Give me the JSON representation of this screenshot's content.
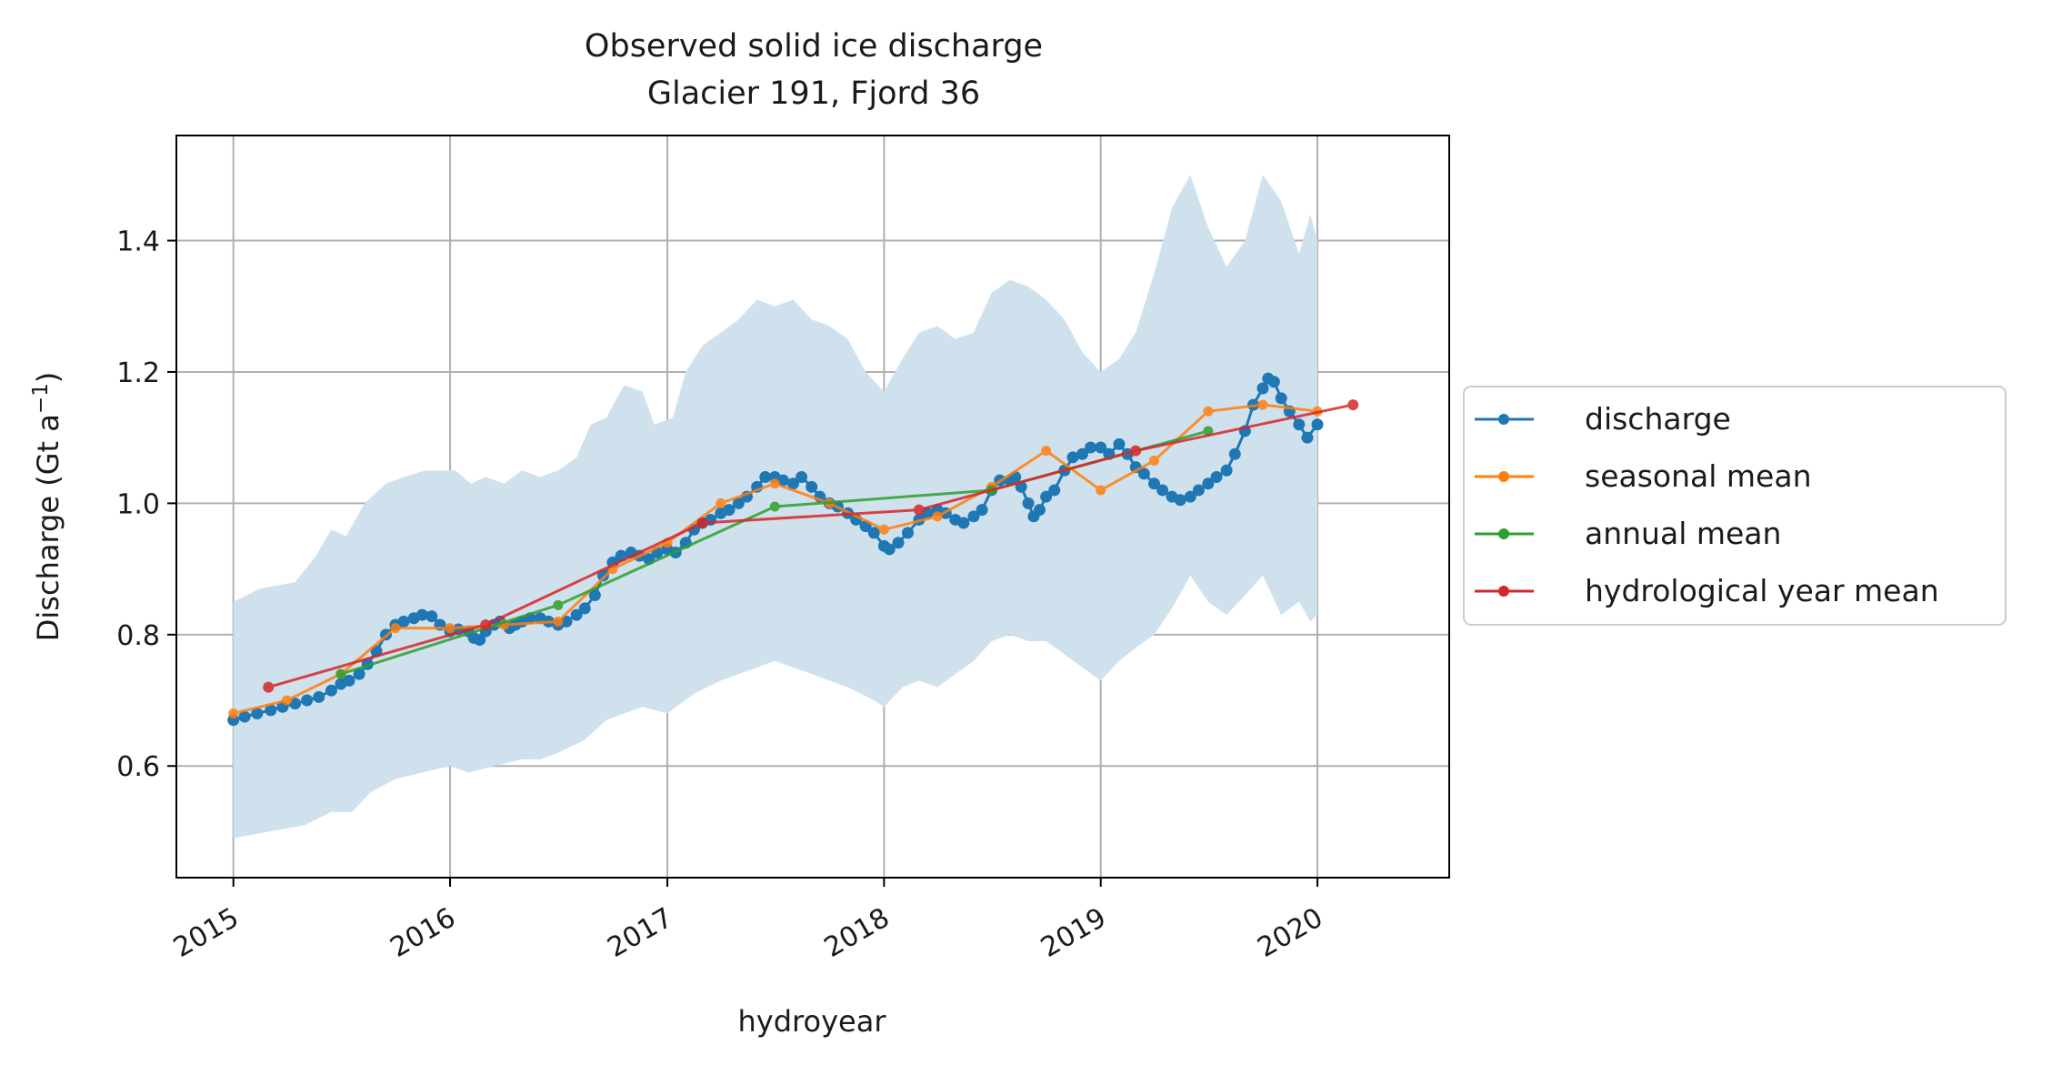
{
  "chart_data": {
    "type": "line",
    "title": "Observed solid ice discharge",
    "subtitle": "Glacier 191, Fjord 36",
    "xlabel": "hydroyear",
    "ylabel": "Discharge (Gt a",
    "ylabel_sup": "−1",
    "ylabel_close": ")",
    "xlim": [
      "2014-09-27",
      "2020-08-10"
    ],
    "ylim": [
      0.43,
      1.56
    ],
    "x_ticks": [
      {
        "date": "2015-01-01",
        "label": "2015"
      },
      {
        "date": "2016-01-01",
        "label": "2016"
      },
      {
        "date": "2017-01-01",
        "label": "2017"
      },
      {
        "date": "2018-01-01",
        "label": "2018"
      },
      {
        "date": "2019-01-01",
        "label": "2019"
      },
      {
        "date": "2020-01-01",
        "label": "2020"
      }
    ],
    "y_ticks": [
      {
        "value": 0.6,
        "label": "0.6"
      },
      {
        "value": 0.8,
        "label": "0.8"
      },
      {
        "value": 1.0,
        "label": "1.0"
      },
      {
        "value": 1.2,
        "label": "1.2"
      },
      {
        "value": 1.4,
        "label": "1.4"
      }
    ],
    "grid": true,
    "legend_position": "right, outside plot area",
    "uncertainty_band": {
      "color": "#d0e1ee",
      "upper": [
        [
          "2015-01-01",
          0.85
        ],
        [
          "2015-02-15",
          0.87
        ],
        [
          "2015-04-15",
          0.88
        ],
        [
          "2015-05-20",
          0.92
        ],
        [
          "2015-06-15",
          0.96
        ],
        [
          "2015-07-10",
          0.95
        ],
        [
          "2015-08-10",
          1.0
        ],
        [
          "2015-09-15",
          1.03
        ],
        [
          "2015-10-15",
          1.04
        ],
        [
          "2015-11-20",
          1.05
        ],
        [
          "2016-01-10",
          1.05
        ],
        [
          "2016-02-05",
          1.03
        ],
        [
          "2016-03-01",
          1.04
        ],
        [
          "2016-04-01",
          1.03
        ],
        [
          "2016-05-01",
          1.05
        ],
        [
          "2016-06-01",
          1.04
        ],
        [
          "2016-07-01",
          1.05
        ],
        [
          "2016-08-01",
          1.07
        ],
        [
          "2016-08-25",
          1.12
        ],
        [
          "2016-09-20",
          1.13
        ],
        [
          "2016-10-20",
          1.18
        ],
        [
          "2016-11-20",
          1.17
        ],
        [
          "2016-12-10",
          1.12
        ],
        [
          "2017-01-10",
          1.13
        ],
        [
          "2017-02-01",
          1.2
        ],
        [
          "2017-03-01",
          1.24
        ],
        [
          "2017-04-01",
          1.26
        ],
        [
          "2017-05-01",
          1.28
        ],
        [
          "2017-06-01",
          1.31
        ],
        [
          "2017-07-01",
          1.3
        ],
        [
          "2017-08-01",
          1.31
        ],
        [
          "2017-09-01",
          1.28
        ],
        [
          "2017-10-01",
          1.27
        ],
        [
          "2017-11-01",
          1.25
        ],
        [
          "2017-12-01",
          1.2
        ],
        [
          "2018-01-01",
          1.17
        ],
        [
          "2018-02-01",
          1.22
        ],
        [
          "2018-03-01",
          1.26
        ],
        [
          "2018-04-01",
          1.27
        ],
        [
          "2018-05-01",
          1.25
        ],
        [
          "2018-06-01",
          1.26
        ],
        [
          "2018-07-01",
          1.32
        ],
        [
          "2018-08-01",
          1.34
        ],
        [
          "2018-09-01",
          1.33
        ],
        [
          "2018-10-01",
          1.31
        ],
        [
          "2018-11-01",
          1.28
        ],
        [
          "2018-12-01",
          1.23
        ],
        [
          "2019-01-01",
          1.2
        ],
        [
          "2019-02-01",
          1.22
        ],
        [
          "2019-03-01",
          1.26
        ],
        [
          "2019-04-01",
          1.35
        ],
        [
          "2019-05-01",
          1.45
        ],
        [
          "2019-06-01",
          1.5
        ],
        [
          "2019-07-01",
          1.42
        ],
        [
          "2019-08-01",
          1.36
        ],
        [
          "2019-09-01",
          1.4
        ],
        [
          "2019-10-01",
          1.5
        ],
        [
          "2019-11-01",
          1.46
        ],
        [
          "2019-12-01",
          1.38
        ],
        [
          "2019-12-20",
          1.44
        ],
        [
          "2020-01-01",
          1.4
        ]
      ],
      "lower": [
        [
          "2015-01-01",
          0.49
        ],
        [
          "2015-03-01",
          0.5
        ],
        [
          "2015-05-01",
          0.51
        ],
        [
          "2015-06-15",
          0.53
        ],
        [
          "2015-07-20",
          0.53
        ],
        [
          "2015-08-20",
          0.56
        ],
        [
          "2015-10-01",
          0.58
        ],
        [
          "2015-11-15",
          0.59
        ],
        [
          "2016-01-01",
          0.6
        ],
        [
          "2016-02-01",
          0.59
        ],
        [
          "2016-03-15",
          0.6
        ],
        [
          "2016-05-01",
          0.61
        ],
        [
          "2016-06-01",
          0.61
        ],
        [
          "2016-07-01",
          0.62
        ],
        [
          "2016-08-15",
          0.64
        ],
        [
          "2016-09-20",
          0.67
        ],
        [
          "2016-10-20",
          0.68
        ],
        [
          "2016-11-20",
          0.69
        ],
        [
          "2017-01-01",
          0.68
        ],
        [
          "2017-02-15",
          0.71
        ],
        [
          "2017-04-01",
          0.73
        ],
        [
          "2017-05-01",
          0.74
        ],
        [
          "2017-06-01",
          0.75
        ],
        [
          "2017-07-01",
          0.76
        ],
        [
          "2017-08-01",
          0.75
        ],
        [
          "2017-09-01",
          0.74
        ],
        [
          "2017-10-01",
          0.73
        ],
        [
          "2017-11-01",
          0.72
        ],
        [
          "2017-12-15",
          0.7
        ],
        [
          "2018-01-01",
          0.69
        ],
        [
          "2018-02-01",
          0.72
        ],
        [
          "2018-03-01",
          0.73
        ],
        [
          "2018-04-01",
          0.72
        ],
        [
          "2018-05-01",
          0.74
        ],
        [
          "2018-06-01",
          0.76
        ],
        [
          "2018-07-01",
          0.79
        ],
        [
          "2018-08-01",
          0.8
        ],
        [
          "2018-09-01",
          0.79
        ],
        [
          "2018-10-01",
          0.79
        ],
        [
          "2018-11-01",
          0.77
        ],
        [
          "2018-12-01",
          0.75
        ],
        [
          "2019-01-01",
          0.73
        ],
        [
          "2019-02-01",
          0.76
        ],
        [
          "2019-03-01",
          0.78
        ],
        [
          "2019-04-01",
          0.8
        ],
        [
          "2019-05-01",
          0.84
        ],
        [
          "2019-06-01",
          0.89
        ],
        [
          "2019-07-01",
          0.85
        ],
        [
          "2019-08-01",
          0.83
        ],
        [
          "2019-09-01",
          0.86
        ],
        [
          "2019-10-01",
          0.89
        ],
        [
          "2019-11-01",
          0.83
        ],
        [
          "2019-12-01",
          0.85
        ],
        [
          "2019-12-20",
          0.82
        ],
        [
          "2020-01-01",
          0.83
        ]
      ]
    },
    "series": [
      {
        "name": "discharge",
        "color": "#1f77b4",
        "marker_size": 6.5,
        "line_width": 3,
        "points": [
          [
            "2015-01-01",
            0.67
          ],
          [
            "2015-01-20",
            0.675
          ],
          [
            "2015-02-10",
            0.68
          ],
          [
            "2015-03-05",
            0.685
          ],
          [
            "2015-03-25",
            0.69
          ],
          [
            "2015-04-15",
            0.695
          ],
          [
            "2015-05-05",
            0.7
          ],
          [
            "2015-05-25",
            0.705
          ],
          [
            "2015-06-15",
            0.715
          ],
          [
            "2015-07-01",
            0.725
          ],
          [
            "2015-07-15",
            0.73
          ],
          [
            "2015-08-01",
            0.74
          ],
          [
            "2015-08-15",
            0.755
          ],
          [
            "2015-08-30",
            0.775
          ],
          [
            "2015-09-15",
            0.8
          ],
          [
            "2015-10-01",
            0.815
          ],
          [
            "2015-10-15",
            0.82
          ],
          [
            "2015-11-01",
            0.825
          ],
          [
            "2015-11-15",
            0.83
          ],
          [
            "2015-12-01",
            0.828
          ],
          [
            "2015-12-15",
            0.815
          ],
          [
            "2016-01-01",
            0.805
          ],
          [
            "2016-01-15",
            0.808
          ],
          [
            "2016-02-01",
            0.805
          ],
          [
            "2016-02-10",
            0.795
          ],
          [
            "2016-02-20",
            0.792
          ],
          [
            "2016-03-01",
            0.805
          ],
          [
            "2016-03-15",
            0.815
          ],
          [
            "2016-03-25",
            0.82
          ],
          [
            "2016-04-10",
            0.81
          ],
          [
            "2016-04-20",
            0.815
          ],
          [
            "2016-05-01",
            0.82
          ],
          [
            "2016-05-15",
            0.825
          ],
          [
            "2016-06-01",
            0.825
          ],
          [
            "2016-06-15",
            0.82
          ],
          [
            "2016-07-01",
            0.815
          ],
          [
            "2016-07-15",
            0.82
          ],
          [
            "2016-08-01",
            0.83
          ],
          [
            "2016-08-15",
            0.84
          ],
          [
            "2016-09-01",
            0.86
          ],
          [
            "2016-09-15",
            0.89
          ],
          [
            "2016-10-01",
            0.91
          ],
          [
            "2016-10-15",
            0.92
          ],
          [
            "2016-11-01",
            0.925
          ],
          [
            "2016-11-15",
            0.92
          ],
          [
            "2016-12-01",
            0.915
          ],
          [
            "2016-12-15",
            0.925
          ],
          [
            "2017-01-01",
            0.93
          ],
          [
            "2017-01-15",
            0.925
          ],
          [
            "2017-02-01",
            0.94
          ],
          [
            "2017-02-15",
            0.96
          ],
          [
            "2017-03-01",
            0.97
          ],
          [
            "2017-03-15",
            0.975
          ],
          [
            "2017-04-01",
            0.985
          ],
          [
            "2017-04-15",
            0.99
          ],
          [
            "2017-05-01",
            1.0
          ],
          [
            "2017-05-15",
            1.01
          ],
          [
            "2017-06-01",
            1.025
          ],
          [
            "2017-06-15",
            1.04
          ],
          [
            "2017-07-01",
            1.04
          ],
          [
            "2017-07-15",
            1.035
          ],
          [
            "2017-08-01",
            1.03
          ],
          [
            "2017-08-15",
            1.04
          ],
          [
            "2017-09-01",
            1.025
          ],
          [
            "2017-09-15",
            1.01
          ],
          [
            "2017-10-01",
            1.0
          ],
          [
            "2017-10-15",
            0.995
          ],
          [
            "2017-11-01",
            0.985
          ],
          [
            "2017-11-15",
            0.975
          ],
          [
            "2017-12-01",
            0.965
          ],
          [
            "2017-12-15",
            0.955
          ],
          [
            "2018-01-01",
            0.935
          ],
          [
            "2018-01-10",
            0.93
          ],
          [
            "2018-01-25",
            0.94
          ],
          [
            "2018-02-10",
            0.955
          ],
          [
            "2018-03-01",
            0.975
          ],
          [
            "2018-03-15",
            0.985
          ],
          [
            "2018-04-01",
            0.99
          ],
          [
            "2018-04-15",
            0.985
          ],
          [
            "2018-05-01",
            0.975
          ],
          [
            "2018-05-15",
            0.97
          ],
          [
            "2018-06-01",
            0.98
          ],
          [
            "2018-06-15",
            0.99
          ],
          [
            "2018-07-01",
            1.02
          ],
          [
            "2018-07-15",
            1.035
          ],
          [
            "2018-08-01",
            1.035
          ],
          [
            "2018-08-10",
            1.04
          ],
          [
            "2018-08-20",
            1.025
          ],
          [
            "2018-09-01",
            1.0
          ],
          [
            "2018-09-10",
            0.98
          ],
          [
            "2018-09-20",
            0.99
          ],
          [
            "2018-10-01",
            1.01
          ],
          [
            "2018-10-15",
            1.02
          ],
          [
            "2018-11-01",
            1.05
          ],
          [
            "2018-11-15",
            1.07
          ],
          [
            "2018-12-01",
            1.075
          ],
          [
            "2018-12-15",
            1.085
          ],
          [
            "2019-01-01",
            1.085
          ],
          [
            "2019-01-15",
            1.075
          ],
          [
            "2019-02-01",
            1.09
          ],
          [
            "2019-02-15",
            1.075
          ],
          [
            "2019-03-01",
            1.055
          ],
          [
            "2019-03-15",
            1.045
          ],
          [
            "2019-04-01",
            1.03
          ],
          [
            "2019-04-15",
            1.02
          ],
          [
            "2019-05-01",
            1.01
          ],
          [
            "2019-05-15",
            1.005
          ],
          [
            "2019-06-01",
            1.01
          ],
          [
            "2019-06-15",
            1.02
          ],
          [
            "2019-07-01",
            1.03
          ],
          [
            "2019-07-15",
            1.04
          ],
          [
            "2019-08-01",
            1.05
          ],
          [
            "2019-08-15",
            1.075
          ],
          [
            "2019-09-01",
            1.11
          ],
          [
            "2019-09-15",
            1.15
          ],
          [
            "2019-10-01",
            1.175
          ],
          [
            "2019-10-10",
            1.19
          ],
          [
            "2019-10-20",
            1.185
          ],
          [
            "2019-11-01",
            1.16
          ],
          [
            "2019-11-15",
            1.14
          ],
          [
            "2019-12-01",
            1.12
          ],
          [
            "2019-12-15",
            1.1
          ],
          [
            "2020-01-01",
            1.12
          ]
        ]
      },
      {
        "name": "seasonal mean",
        "color": "#ff7f0e",
        "marker_size": 5.5,
        "line_width": 3,
        "points": [
          [
            "2015-01-01",
            0.68
          ],
          [
            "2015-04-01",
            0.7
          ],
          [
            "2015-07-01",
            0.74
          ],
          [
            "2015-10-01",
            0.81
          ],
          [
            "2016-01-01",
            0.81
          ],
          [
            "2016-04-01",
            0.815
          ],
          [
            "2016-07-01",
            0.82
          ],
          [
            "2016-10-01",
            0.9
          ],
          [
            "2017-01-01",
            0.94
          ],
          [
            "2017-04-01",
            1.0
          ],
          [
            "2017-07-01",
            1.03
          ],
          [
            "2017-10-01",
            1.0
          ],
          [
            "2018-01-01",
            0.96
          ],
          [
            "2018-04-01",
            0.98
          ],
          [
            "2018-07-01",
            1.025
          ],
          [
            "2018-10-01",
            1.08
          ],
          [
            "2019-01-01",
            1.02
          ],
          [
            "2019-04-01",
            1.065
          ],
          [
            "2019-07-01",
            1.14
          ],
          [
            "2019-10-01",
            1.15
          ],
          [
            "2020-01-01",
            1.14
          ]
        ]
      },
      {
        "name": "annual mean",
        "color": "#2ca02c",
        "marker_size": 5.5,
        "line_width": 3,
        "points": [
          [
            "2015-07-01",
            0.74
          ],
          [
            "2016-07-01",
            0.845
          ],
          [
            "2017-07-01",
            0.995
          ],
          [
            "2018-07-01",
            1.02
          ],
          [
            "2019-07-01",
            1.11
          ]
        ]
      },
      {
        "name": "hydrological year mean",
        "color": "#d62728",
        "marker_size": 6,
        "line_width": 3,
        "points": [
          [
            "2015-03-01",
            0.72
          ],
          [
            "2016-03-01",
            0.815
          ],
          [
            "2017-03-01",
            0.97
          ],
          [
            "2018-03-01",
            0.99
          ],
          [
            "2019-03-01",
            1.08
          ],
          [
            "2020-03-01",
            1.15
          ]
        ]
      }
    ]
  }
}
